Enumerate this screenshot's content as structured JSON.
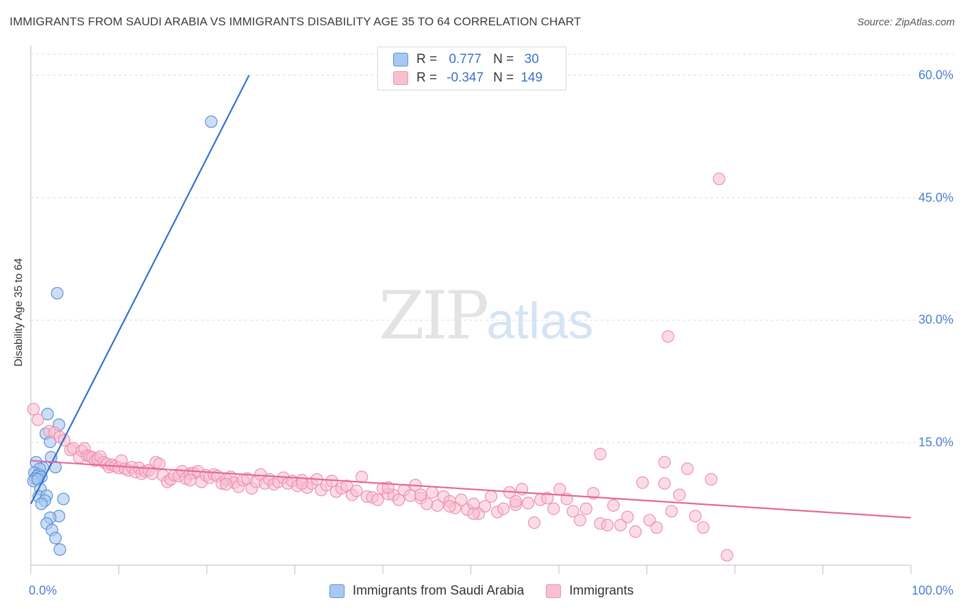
{
  "title": "IMMIGRANTS FROM SAUDI ARABIA VS IMMIGRANTS DISABILITY AGE 35 TO 64 CORRELATION CHART",
  "source": "Source: ZipAtlas.com",
  "watermark": {
    "zip": "ZIP",
    "atlas": "atlas"
  },
  "legend": {
    "r_label": "R =",
    "n_label": "N =",
    "series1": {
      "r": "0.777",
      "n": "30"
    },
    "series2": {
      "r": "-0.347",
      "n": "149"
    }
  },
  "colors": {
    "blue_fill": "#a9c8f0",
    "blue_stroke": "#5b8fd8",
    "blue_line": "#2f6fd0",
    "pink_fill": "#f8c0d0",
    "pink_stroke": "#ee8fae",
    "pink_line": "#e4679a",
    "grid": "#dcdcdc",
    "tick_text": "#4a7fd0"
  },
  "chart_data": {
    "type": "scatter",
    "title": "IMMIGRANTS FROM SAUDI ARABIA VS IMMIGRANTS DISABILITY AGE 35 TO 64 CORRELATION CHART",
    "xlabel": "",
    "ylabel": "Disability Age 35 to 64",
    "xlim": [
      0,
      100
    ],
    "ylim": [
      0,
      63
    ],
    "y_ticks": [
      {
        "value": 15,
        "label": "15.0%"
      },
      {
        "value": 30,
        "label": "30.0%"
      },
      {
        "value": 45,
        "label": "45.0%"
      },
      {
        "value": 60,
        "label": "60.0%"
      }
    ],
    "x_ticks": [
      {
        "value": 0,
        "label": "0.0%"
      },
      {
        "value": 100,
        "label": "100.0%"
      }
    ],
    "grid": "horizontal dashed",
    "legend_position": "top-center",
    "series": [
      {
        "name": "Immigrants from Saudi Arabia",
        "r": 0.777,
        "n": 30,
        "trend": {
          "x0": 0,
          "y0": 7.5,
          "x1": 24.8,
          "y1": 60.0
        },
        "points": [
          [
            20.5,
            54.3
          ],
          [
            3.0,
            33.3
          ],
          [
            1.9,
            18.5
          ],
          [
            3.2,
            17.2
          ],
          [
            1.7,
            16.1
          ],
          [
            2.2,
            15.1
          ],
          [
            2.3,
            13.2
          ],
          [
            0.6,
            12.6
          ],
          [
            2.8,
            12.0
          ],
          [
            1.4,
            11.9
          ],
          [
            1.0,
            11.8
          ],
          [
            0.4,
            11.3
          ],
          [
            0.9,
            11.1
          ],
          [
            0.7,
            10.9
          ],
          [
            1.2,
            10.8
          ],
          [
            0.5,
            10.6
          ],
          [
            0.3,
            10.3
          ],
          [
            0.8,
            10.5
          ],
          [
            1.1,
            9.3
          ],
          [
            0.9,
            8.4
          ],
          [
            1.8,
            8.5
          ],
          [
            3.7,
            8.1
          ],
          [
            1.6,
            7.9
          ],
          [
            1.2,
            7.5
          ],
          [
            3.2,
            6.0
          ],
          [
            2.2,
            5.8
          ],
          [
            1.8,
            5.1
          ],
          [
            2.4,
            4.3
          ],
          [
            2.8,
            3.3
          ],
          [
            3.3,
            1.9
          ]
        ]
      },
      {
        "name": "Immigrants",
        "r": -0.347,
        "n": 149,
        "trend": {
          "x0": 0,
          "y0": 12.8,
          "x1": 100,
          "y1": 5.8
        },
        "points": [
          [
            0.3,
            19.1
          ],
          [
            0.8,
            17.8
          ],
          [
            2.1,
            16.4
          ],
          [
            2.7,
            16.2
          ],
          [
            3.3,
            15.7
          ],
          [
            3.8,
            15.3
          ],
          [
            4.5,
            14.1
          ],
          [
            4.8,
            14.3
          ],
          [
            5.5,
            13.2
          ],
          [
            5.8,
            14.0
          ],
          [
            6.1,
            14.3
          ],
          [
            6.4,
            13.4
          ],
          [
            6.7,
            13.3
          ],
          [
            7.0,
            13.2
          ],
          [
            7.3,
            12.8
          ],
          [
            7.6,
            13.0
          ],
          [
            7.9,
            13.3
          ],
          [
            8.3,
            12.6
          ],
          [
            8.6,
            12.4
          ],
          [
            8.9,
            12.0
          ],
          [
            9.2,
            12.3
          ],
          [
            9.6,
            12.1
          ],
          [
            10.0,
            11.9
          ],
          [
            10.3,
            12.8
          ],
          [
            10.7,
            11.8
          ],
          [
            11.1,
            11.6
          ],
          [
            11.5,
            12.0
          ],
          [
            11.9,
            11.4
          ],
          [
            12.3,
            11.9
          ],
          [
            12.6,
            11.2
          ],
          [
            13.0,
            11.5
          ],
          [
            13.4,
            11.6
          ],
          [
            13.8,
            11.2
          ],
          [
            14.2,
            12.6
          ],
          [
            14.6,
            12.4
          ],
          [
            15.0,
            11.0
          ],
          [
            15.5,
            10.2
          ],
          [
            15.9,
            10.5
          ],
          [
            16.3,
            11.0
          ],
          [
            16.8,
            10.9
          ],
          [
            17.2,
            11.5
          ],
          [
            17.6,
            10.6
          ],
          [
            18.1,
            11.2
          ],
          [
            18.5,
            11.3
          ],
          [
            19.0,
            11.5
          ],
          [
            19.4,
            10.2
          ],
          [
            19.9,
            11.0
          ],
          [
            20.3,
            10.7
          ],
          [
            20.8,
            11.1
          ],
          [
            21.2,
            10.9
          ],
          [
            21.7,
            10.0
          ],
          [
            22.2,
            10.5
          ],
          [
            22.7,
            10.8
          ],
          [
            23.1,
            10.1
          ],
          [
            23.6,
            9.6
          ],
          [
            24.1,
            10.4
          ],
          [
            24.6,
            10.6
          ],
          [
            25.1,
            9.4
          ],
          [
            25.6,
            10.2
          ],
          [
            26.1,
            11.1
          ],
          [
            26.6,
            10.0
          ],
          [
            27.1,
            10.5
          ],
          [
            27.6,
            9.9
          ],
          [
            28.1,
            10.2
          ],
          [
            28.7,
            10.7
          ],
          [
            29.2,
            10.0
          ],
          [
            29.7,
            10.3
          ],
          [
            30.3,
            9.7
          ],
          [
            30.8,
            10.4
          ],
          [
            31.4,
            9.5
          ],
          [
            31.9,
            10.0
          ],
          [
            32.5,
            10.5
          ],
          [
            33.0,
            9.2
          ],
          [
            33.6,
            9.8
          ],
          [
            34.2,
            10.3
          ],
          [
            34.7,
            9.0
          ],
          [
            35.3,
            9.4
          ],
          [
            35.9,
            9.7
          ],
          [
            36.5,
            8.6
          ],
          [
            37.0,
            9.1
          ],
          [
            37.6,
            10.8
          ],
          [
            38.2,
            8.4
          ],
          [
            38.8,
            8.3
          ],
          [
            39.4,
            8.0
          ],
          [
            40.0,
            9.4
          ],
          [
            40.6,
            8.7
          ],
          [
            41.2,
            8.6
          ],
          [
            41.8,
            8.0
          ],
          [
            42.4,
            9.2
          ],
          [
            43.1,
            8.5
          ],
          [
            43.7,
            9.8
          ],
          [
            44.3,
            8.2
          ],
          [
            45.0,
            7.5
          ],
          [
            45.6,
            8.9
          ],
          [
            46.2,
            7.3
          ],
          [
            46.9,
            8.4
          ],
          [
            47.6,
            7.8
          ],
          [
            48.2,
            7.0
          ],
          [
            48.9,
            8.0
          ],
          [
            49.6,
            6.8
          ],
          [
            50.3,
            7.5
          ],
          [
            50.9,
            6.3
          ],
          [
            51.6,
            7.2
          ],
          [
            52.3,
            8.4
          ],
          [
            53.0,
            6.5
          ],
          [
            53.7,
            6.9
          ],
          [
            54.4,
            8.9
          ],
          [
            55.1,
            7.4
          ],
          [
            55.8,
            9.3
          ],
          [
            56.5,
            7.6
          ],
          [
            57.2,
            5.2
          ],
          [
            57.9,
            8.0
          ],
          [
            58.7,
            8.2
          ],
          [
            59.4,
            6.9
          ],
          [
            60.1,
            9.3
          ],
          [
            60.9,
            8.1
          ],
          [
            61.6,
            6.6
          ],
          [
            62.4,
            5.5
          ],
          [
            63.1,
            6.9
          ],
          [
            63.9,
            8.8
          ],
          [
            64.7,
            5.1
          ],
          [
            65.5,
            4.9
          ],
          [
            66.2,
            7.3
          ],
          [
            67.0,
            4.9
          ],
          [
            67.8,
            5.9
          ],
          [
            68.7,
            4.1
          ],
          [
            69.5,
            10.1
          ],
          [
            70.3,
            5.5
          ],
          [
            71.1,
            4.6
          ],
          [
            72.0,
            10.0
          ],
          [
            72.8,
            6.6
          ],
          [
            73.7,
            8.6
          ],
          [
            74.6,
            11.8
          ],
          [
            75.5,
            6.0
          ],
          [
            76.4,
            4.6
          ],
          [
            77.3,
            10.5
          ],
          [
            78.2,
            47.3
          ],
          [
            79.1,
            1.2
          ],
          [
            72.0,
            12.6
          ],
          [
            64.7,
            13.6
          ],
          [
            40.6,
            9.5
          ],
          [
            50.3,
            6.3
          ],
          [
            47.6,
            7.2
          ],
          [
            55.1,
            7.8
          ],
          [
            30.8,
            10.0
          ],
          [
            72.4,
            28.0
          ],
          [
            22.2,
            9.9
          ],
          [
            18.1,
            10.4
          ],
          [
            44.3,
            8.6
          ]
        ]
      }
    ]
  },
  "bottom_legend": {
    "item1": "Immigrants from Saudi Arabia",
    "item2": "Immigrants"
  }
}
